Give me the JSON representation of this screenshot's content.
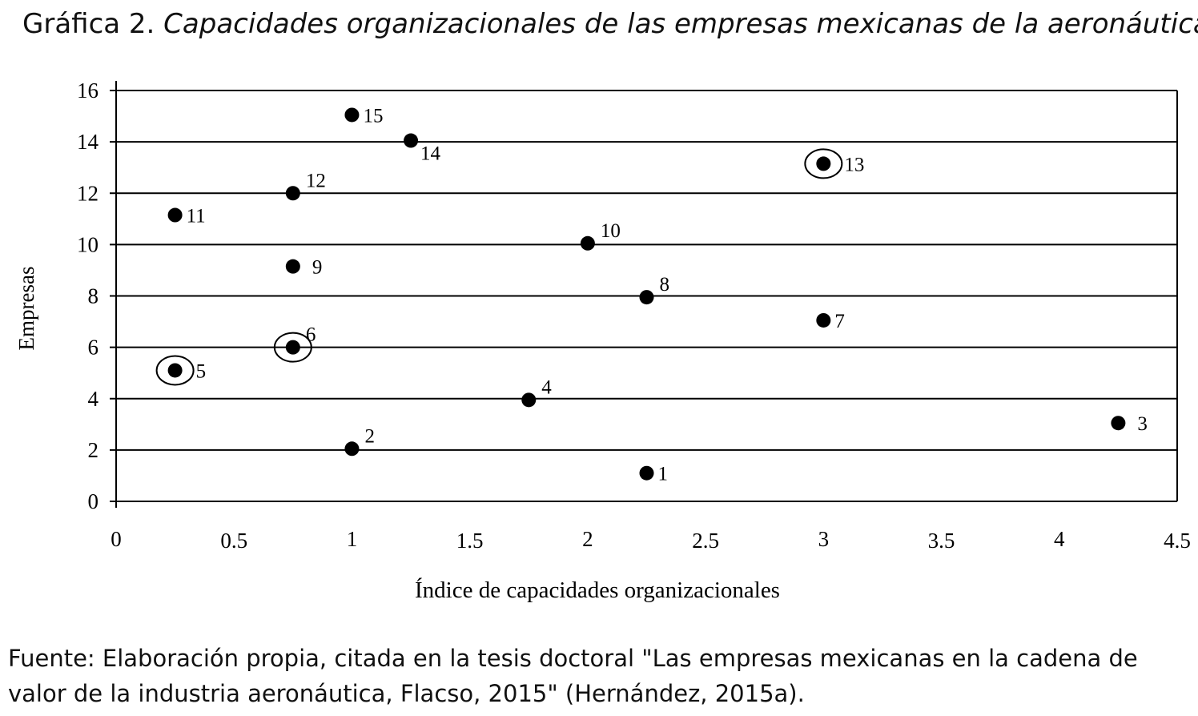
{
  "title": {
    "prefix": "Gráfica 2.",
    "text": "Capacidades organizacionales de las empresas mexicanas de la aeronáutica"
  },
  "source": {
    "text": "Fuente: Elaboración propia, citada en la tesis doctoral \"Las empresas mexicanas en la cadena de valor de la industria aeronáutica, Flacso, 2015\" (Hernández, 2015a)."
  },
  "chart_data": {
    "type": "scatter",
    "xlabel": "Índice de capacidades organizacionales",
    "ylabel": "Empresas",
    "xlim": [
      0,
      4.5
    ],
    "ylim": [
      0,
      16
    ],
    "x_ticks": [
      "0",
      "0.5",
      "1",
      "1.5",
      "2",
      "2.5",
      "3",
      "3.5",
      "4",
      "4.5"
    ],
    "y_ticks": [
      "0",
      "2",
      "4",
      "6",
      "8",
      "10",
      "12",
      "14",
      "16"
    ],
    "grid": "horizontal",
    "points": [
      {
        "label": "1",
        "x": 2.25,
        "y": 1.1,
        "circled": false
      },
      {
        "label": "2",
        "x": 1.0,
        "y": 2.05,
        "circled": false
      },
      {
        "label": "3",
        "x": 4.25,
        "y": 3.05,
        "circled": false
      },
      {
        "label": "4",
        "x": 1.75,
        "y": 3.95,
        "circled": false
      },
      {
        "label": "5",
        "x": 0.25,
        "y": 5.1,
        "circled": true
      },
      {
        "label": "6",
        "x": 0.75,
        "y": 6.0,
        "circled": true
      },
      {
        "label": "7",
        "x": 3.0,
        "y": 7.05,
        "circled": false
      },
      {
        "label": "8",
        "x": 2.25,
        "y": 7.95,
        "circled": false
      },
      {
        "label": "9",
        "x": 0.75,
        "y": 9.15,
        "circled": false
      },
      {
        "label": "10",
        "x": 2.0,
        "y": 10.05,
        "circled": false
      },
      {
        "label": "11",
        "x": 0.25,
        "y": 11.15,
        "circled": false
      },
      {
        "label": "12",
        "x": 0.75,
        "y": 12.0,
        "circled": false
      },
      {
        "label": "13",
        "x": 3.0,
        "y": 13.15,
        "circled": true
      },
      {
        "label": "14",
        "x": 1.25,
        "y": 14.05,
        "circled": false
      },
      {
        "label": "15",
        "x": 1.0,
        "y": 15.05,
        "circled": false
      }
    ]
  }
}
